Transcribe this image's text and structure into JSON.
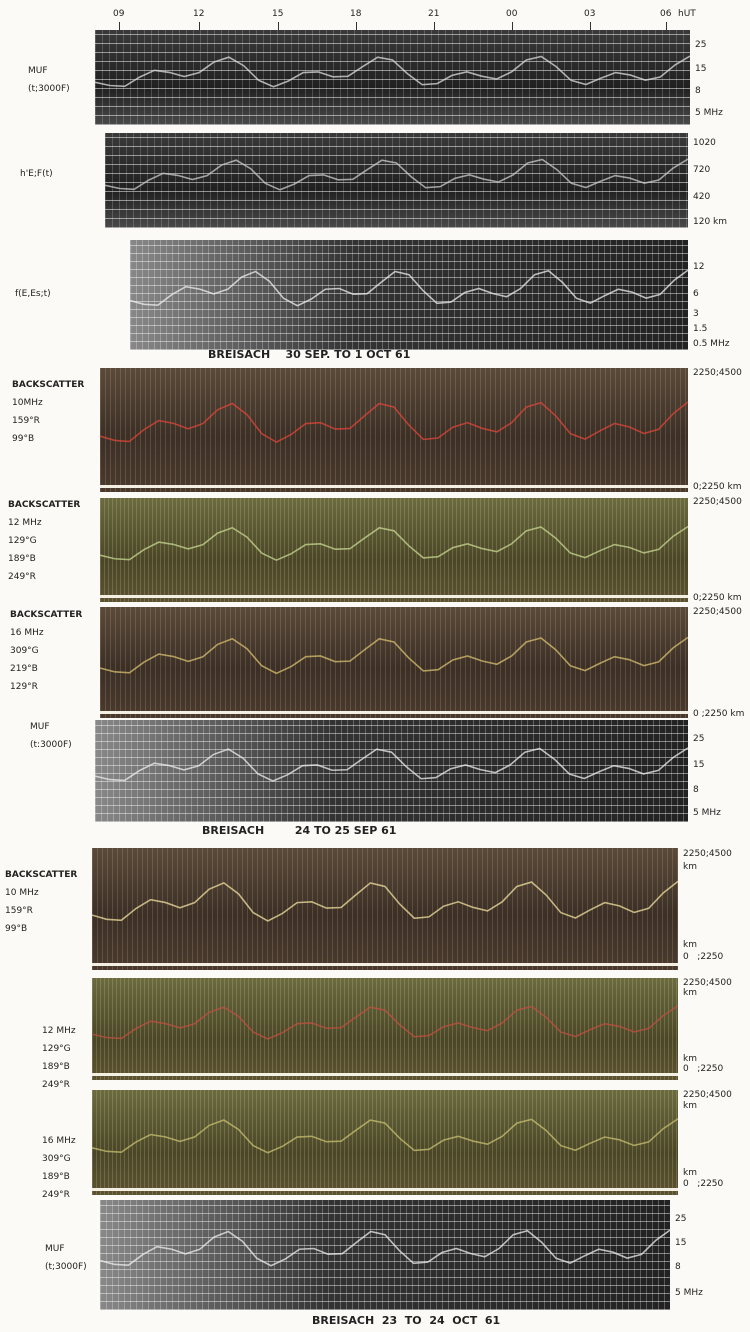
{
  "time_axis": [
    "09",
    "12",
    "15",
    "18",
    "21",
    "00",
    "03",
    "06",
    "hUT"
  ],
  "sections": [
    {
      "panels": [
        {
          "left_labels": [
            "MUF",
            "(t;3000F)"
          ],
          "right_labels": [
            "25",
            "15",
            "8",
            "5 MHz"
          ]
        },
        {
          "left_labels": [
            "h'E;F(t)"
          ],
          "right_labels": [
            "1020",
            "720",
            "420",
            "120 km"
          ]
        },
        {
          "left_labels": [
            "f(E,Es;t)"
          ],
          "right_labels": [
            "12",
            "6",
            "3",
            "1.5",
            "0.5 MHz"
          ]
        }
      ],
      "caption": "BREISACH    30 SEP. TO 1 OCT 61"
    },
    {
      "panels": [
        {
          "left_labels": [
            "BACKSCATTER",
            "10MHz",
            "159°R",
            "99°B"
          ],
          "right_labels": [
            "2250;4500",
            "0;2250 km"
          ]
        },
        {
          "left_labels": [
            "BACKSCATTER",
            "12 MHz",
            "129°G",
            "189°B",
            "249°R"
          ],
          "right_labels": [
            "2250;4500",
            "0;2250 km"
          ]
        },
        {
          "left_labels": [
            "BACKSCATTER",
            "16 MHz",
            "309°G",
            "219°B",
            "129°R"
          ],
          "right_labels": [
            "2250;4500",
            "0 ;2250 km"
          ]
        },
        {
          "left_labels": [
            "MUF",
            "(t:3000F)"
          ],
          "right_labels": [
            "25",
            "15",
            "8",
            "5 MHz"
          ]
        }
      ],
      "caption": "BREISACH        24 TO 25 SEP 61"
    },
    {
      "panels": [
        {
          "left_labels": [
            "BACKSCATTER",
            "10 MHz",
            "159°R",
            "99°B"
          ],
          "right_labels": [
            "2250;4500",
            "km",
            "km",
            "0   ;2250"
          ]
        },
        {
          "left_labels": [
            "12 MHz",
            "129°G",
            "189°B",
            "249°R"
          ],
          "right_labels": [
            "2250;4500",
            "km",
            "km",
            "0   ;2250"
          ]
        },
        {
          "left_labels": [
            "16 MHz",
            "309°G",
            "189°B",
            "249°R"
          ],
          "right_labels": [
            "2250;4500",
            "km",
            "km",
            "0   ;2250"
          ]
        },
        {
          "left_labels": [
            "MUF",
            "(t;3000F)"
          ],
          "right_labels": [
            "25",
            "15",
            "8",
            "5 MHz"
          ]
        }
      ],
      "caption": "BREISACH  23  TO  24  OCT  61"
    }
  ]
}
